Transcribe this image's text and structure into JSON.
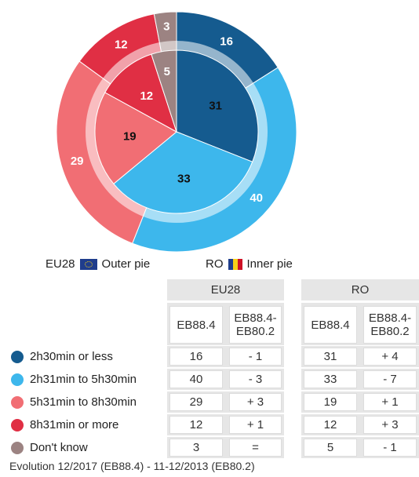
{
  "chart_data": {
    "type": "pie",
    "categories": [
      "2h30min or less",
      "2h31min to 5h30min",
      "5h31min to 8h30min",
      "8h31min or more",
      "Don't know"
    ],
    "colors": [
      "#155b8f",
      "#3db7ec",
      "#f16e74",
      "#e02f44",
      "#9c8382"
    ],
    "series": [
      {
        "name": "EU28",
        "role": "outer",
        "values": [
          16,
          40,
          29,
          12,
          3
        ]
      },
      {
        "name": "RO",
        "role": "inner",
        "values": [
          31,
          33,
          19,
          12,
          5
        ]
      }
    ]
  },
  "legend": {
    "eu_label": "EU28",
    "eu_text": "Outer pie",
    "ro_label": "RO",
    "ro_text": "Inner pie"
  },
  "table": {
    "groups": [
      "EU28",
      "RO"
    ],
    "col_eb": "EB88.4",
    "col_diff": "EB88.4-\nEB80.2",
    "rows": [
      {
        "label": "2h30min or less",
        "eu": "16",
        "eu_diff": "- 1",
        "ro": "31",
        "ro_diff": "+ 4"
      },
      {
        "label": "2h31min to 5h30min",
        "eu": "40",
        "eu_diff": "- 3",
        "ro": "33",
        "ro_diff": "- 7"
      },
      {
        "label": "5h31min to 8h30min",
        "eu": "29",
        "eu_diff": "+ 3",
        "ro": "19",
        "ro_diff": "+ 1"
      },
      {
        "label": "8h31min or more",
        "eu": "12",
        "eu_diff": "+ 1",
        "ro": "12",
        "ro_diff": "+ 3"
      },
      {
        "label": "Don't know",
        "eu": "3",
        "eu_diff": "=",
        "ro": "5",
        "ro_diff": "- 1"
      }
    ]
  },
  "footnote": "Evolution 12/2017 (EB88.4) - 11-12/2013 (EB80.2)"
}
